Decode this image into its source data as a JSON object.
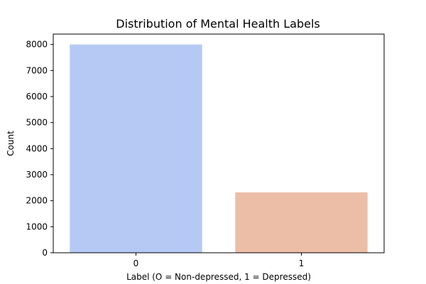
{
  "chart_data": {
    "type": "bar",
    "title": "Distribution of Mental Health Labels",
    "xlabel": "Label (O = Non-depressed, 1 = Depressed)",
    "ylabel": "Count",
    "categories": [
      "0",
      "1"
    ],
    "values": [
      8000,
      2320
    ],
    "colors": [
      "#b5c9f4",
      "#ecbea8"
    ],
    "ylim": [
      0,
      8400
    ],
    "yticks": [
      0,
      1000,
      2000,
      3000,
      4000,
      5000,
      6000,
      7000,
      8000
    ],
    "grid": false,
    "legend": "none"
  }
}
